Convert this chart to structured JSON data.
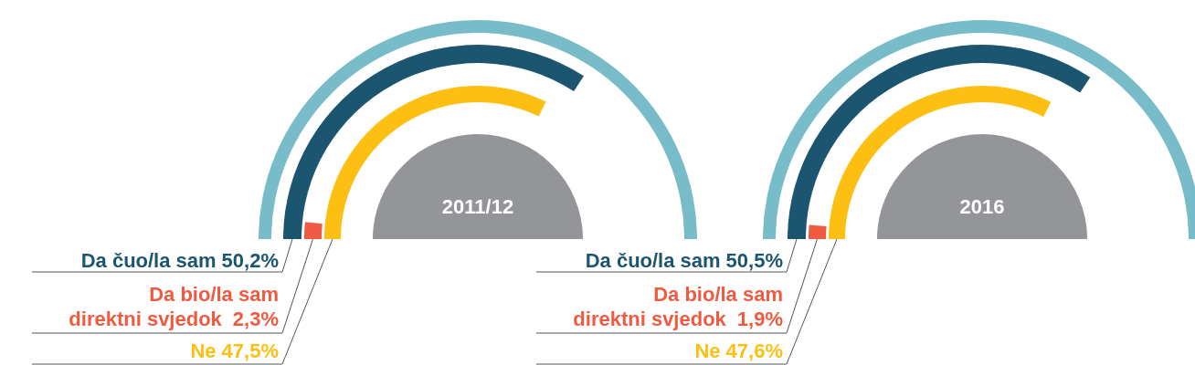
{
  "chart_data": [
    {
      "type": "other",
      "title": "2011/12",
      "categories": [
        "Da čuo/la sam",
        "Da bio/la sam direktni svjedok",
        "Ne"
      ],
      "values": [
        50.2,
        2.3,
        47.5
      ],
      "value_labels": [
        "50,2%",
        "2,3%",
        "47,5%"
      ],
      "colors": [
        "#1b5570",
        "#ef5a40",
        "#fdbf12"
      ]
    },
    {
      "type": "other",
      "title": "2016",
      "categories": [
        "Da čuo/la sam",
        "Da bio/la sam direktni svjedok",
        "Ne"
      ],
      "values": [
        50.5,
        1.9,
        47.6
      ],
      "value_labels": [
        "50,5%",
        "1,9%",
        "47,6%"
      ],
      "colors": [
        "#1b5570",
        "#ef5a40",
        "#fdbf12"
      ]
    }
  ]
}
